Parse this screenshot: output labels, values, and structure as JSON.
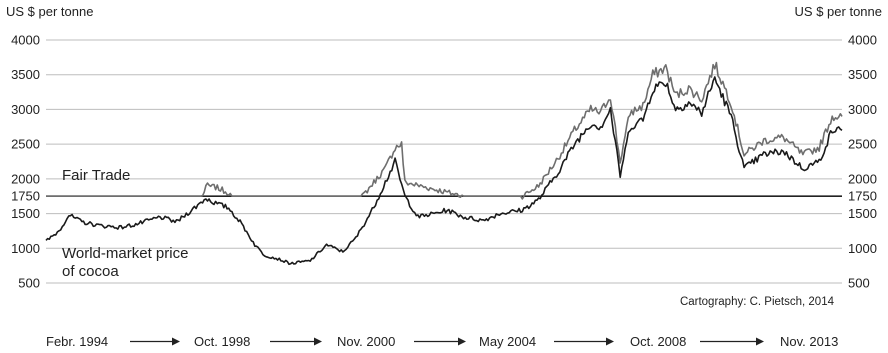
{
  "chart_data": {
    "type": "line",
    "y_unit_label": "US $ per tonne",
    "yticks": [
      500,
      1000,
      1500,
      1750,
      2000,
      2500,
      3000,
      3500,
      4000
    ],
    "ylim": [
      500,
      4000
    ],
    "x_range": [
      "1994-02",
      "2014-06"
    ],
    "grid": true,
    "fair_trade": {
      "label": "Fair Trade",
      "value": 1750
    },
    "series": [
      {
        "name": "World-market price of cocoa",
        "label_lines": [
          "World-market price",
          "of cocoa"
        ],
        "color": "#1a1a1a",
        "x": [
          "1994-02",
          "1994-06",
          "1994-09",
          "1995-01",
          "1995-06",
          "1996-01",
          "1996-06",
          "1997-01",
          "1997-06",
          "1997-12",
          "1998-03",
          "1998-06",
          "1998-10",
          "1999-02",
          "1999-06",
          "1999-09",
          "2000-01",
          "2000-05",
          "2000-11",
          "2001-04",
          "2001-09",
          "2002-01",
          "2002-06",
          "2002-10",
          "2003-01",
          "2003-04",
          "2003-08",
          "2004-01",
          "2004-05",
          "2004-10",
          "2005-04",
          "2005-09",
          "2006-04",
          "2006-09",
          "2007-03",
          "2007-08",
          "2008-01",
          "2008-04",
          "2008-07",
          "2008-10",
          "2009-01",
          "2009-05",
          "2009-08",
          "2009-12",
          "2010-03",
          "2010-07",
          "2010-11",
          "2011-03",
          "2011-08",
          "2011-12",
          "2012-06",
          "2012-12",
          "2013-06",
          "2013-11",
          "2014-03",
          "2014-06"
        ],
        "values": [
          1100,
          1250,
          1480,
          1380,
          1330,
          1300,
          1350,
          1450,
          1380,
          1600,
          1720,
          1650,
          1580,
          1350,
          1050,
          900,
          850,
          780,
          820,
          1050,
          950,
          1150,
          1550,
          1950,
          2250,
          1750,
          1450,
          1500,
          1550,
          1450,
          1400,
          1500,
          1550,
          1700,
          2100,
          2500,
          2800,
          2750,
          3000,
          2050,
          2750,
          2850,
          3300,
          3400,
          3000,
          3100,
          2950,
          3450,
          2900,
          2150,
          2350,
          2400,
          2150,
          2250,
          2700,
          2700
        ]
      },
      {
        "name": "Fair Trade minimum price",
        "color": "#6e6e6e",
        "x": [
          "1994-02",
          "1998-02",
          "1998-03",
          "1998-06",
          "1998-10",
          "1998-11",
          "2002-03",
          "2002-10",
          "2003-01",
          "2003-03",
          "2003-04",
          "2004-10",
          "2005-04",
          "2005-09",
          "2006-04",
          "2006-09",
          "2007-03",
          "2007-08",
          "2008-01",
          "2008-04",
          "2008-07",
          "2008-10",
          "2009-01",
          "2009-05",
          "2009-08",
          "2009-12",
          "2010-03",
          "2010-07",
          "2010-11",
          "2011-03",
          "2011-08",
          "2011-12",
          "2012-06",
          "2012-12",
          "2013-06",
          "2013-11",
          "2014-03",
          "2014-06"
        ],
        "values": [
          1750,
          1750,
          1900,
          1880,
          1800,
          1750,
          1750,
          2150,
          2450,
          2500,
          1950,
          1750,
          1750,
          1750,
          1750,
          1900,
          2300,
          2700,
          3000,
          2950,
          3200,
          2250,
          2950,
          3050,
          3500,
          3600,
          3200,
          3300,
          3150,
          3650,
          3100,
          2350,
          2550,
          2600,
          2350,
          2450,
          2900,
          2900
        ]
      }
    ],
    "timeline": [
      "Febr. 1994",
      "Oct. 1998",
      "Nov. 2000",
      "May 2004",
      "Oct. 2008",
      "Nov. 2013"
    ],
    "credit": "Cartography: C. Pietsch, 2014"
  }
}
